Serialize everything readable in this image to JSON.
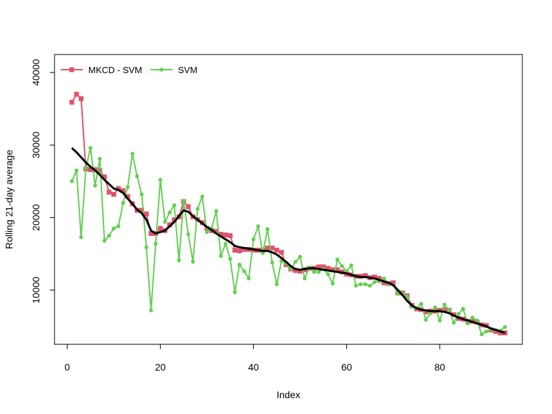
{
  "chart_data": {
    "type": "line",
    "title": "",
    "xlabel": "Index",
    "ylabel": "Rolling 21-day average",
    "xlim": [
      1,
      94
    ],
    "ylim": [
      4000,
      41000
    ],
    "xticks": [
      0,
      20,
      40,
      60,
      80
    ],
    "yticks": [
      10000,
      20000,
      30000,
      40000
    ],
    "legend": "top-left",
    "series": [
      {
        "name": "MKCD - SVM",
        "color": "#DF536B",
        "marker": "square",
        "values": [
          35900,
          37000,
          36400,
          26700,
          26600,
          26600,
          26500,
          25600,
          23500,
          23200,
          24000,
          23700,
          22900,
          21900,
          21000,
          21000,
          20500,
          17800,
          17800,
          18500,
          18200,
          19000,
          19700,
          20100,
          22200,
          21500,
          20100,
          19700,
          19300,
          18500,
          18200,
          18100,
          17700,
          17600,
          17500,
          15500,
          15400,
          15600,
          15600,
          15500,
          15500,
          15500,
          15800,
          15800,
          15500,
          15200,
          13500,
          12900,
          12700,
          12600,
          12800,
          13000,
          13000,
          13200,
          13200,
          13000,
          12800,
          12800,
          12500,
          12200,
          12100,
          11900,
          11900,
          12000,
          11700,
          11800,
          11600,
          11000,
          10900,
          11000,
          9600,
          9600,
          9200,
          7900,
          7400,
          7300,
          7000,
          7100,
          7100,
          7200,
          7300,
          7200,
          6600,
          6100,
          6000,
          5700,
          5700,
          5600,
          5200,
          5100,
          4500,
          4300,
          4100,
          4100
        ]
      },
      {
        "name": "SVM",
        "color": "#61D04F",
        "marker": "circle",
        "values": [
          25000,
          26500,
          17300,
          26800,
          29600,
          24400,
          28100,
          16800,
          17500,
          18500,
          18800,
          22000,
          24200,
          28800,
          25700,
          23200,
          15900,
          7200,
          16400,
          25200,
          19400,
          20700,
          21700,
          14100,
          22300,
          17700,
          13900,
          21200,
          22900,
          18000,
          18500,
          20900,
          14700,
          16400,
          14300,
          9700,
          13500,
          12600,
          11600,
          17000,
          18800,
          15100,
          18400,
          13800,
          10800,
          14000,
          13700,
          12900,
          13900,
          14600,
          11600,
          13100,
          12500,
          12500,
          12900,
          12200,
          10900,
          14200,
          13300,
          12600,
          13400,
          10600,
          10800,
          10800,
          10600,
          11100,
          11200,
          11600,
          10900,
          10700,
          9500,
          9600,
          9100,
          7700,
          7500,
          8100,
          5900,
          6800,
          7600,
          5800,
          8000,
          7200,
          5500,
          6700,
          7400,
          5400,
          6200,
          5800,
          3900,
          4300,
          4600,
          4500,
          4400,
          4900
        ]
      },
      {
        "name": "",
        "color": "#000000",
        "marker": "none",
        "values": [
          29600,
          29000,
          28300,
          27600,
          27000,
          26500,
          25900,
          25200,
          24600,
          24000,
          23800,
          23400,
          22600,
          21900,
          21100,
          20600,
          19700,
          18200,
          17800,
          18000,
          18200,
          18800,
          19400,
          20200,
          21000,
          20800,
          20200,
          19700,
          19200,
          18700,
          18300,
          17800,
          17400,
          17000,
          16600,
          16100,
          15900,
          15800,
          15700,
          15600,
          15500,
          15400,
          15400,
          15200,
          14900,
          14400,
          13900,
          13300,
          12900,
          12800,
          12900,
          13000,
          13000,
          12900,
          12800,
          12700,
          12600,
          12500,
          12400,
          12300,
          12100,
          11900,
          11800,
          11800,
          11700,
          11600,
          11400,
          11200,
          11000,
          10700,
          10000,
          9300,
          8500,
          7900,
          7500,
          7300,
          7200,
          7100,
          7100,
          7100,
          7000,
          6800,
          6500,
          6200,
          6000,
          5800,
          5600,
          5400,
          5200,
          5000,
          4700,
          4500,
          4300,
          4100
        ]
      }
    ]
  }
}
